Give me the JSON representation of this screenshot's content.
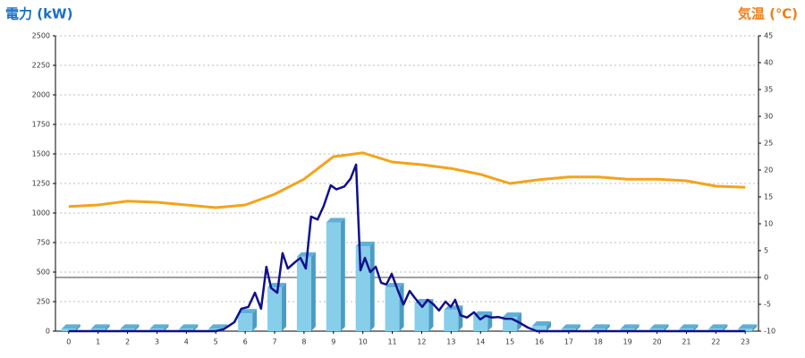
{
  "chart_data": {
    "type": "bar",
    "title_left": "電力 (kW)",
    "title_right": "気温 (℃)",
    "categories": [
      "0",
      "1",
      "2",
      "3",
      "4",
      "5",
      "6",
      "7",
      "8",
      "9",
      "10",
      "11",
      "12",
      "13",
      "14",
      "15",
      "16",
      "17",
      "18",
      "19",
      "20",
      "21",
      "22",
      "23"
    ],
    "xlim": [
      -0.45,
      23.45
    ],
    "ylim": [
      0,
      2500
    ],
    "yticks": [
      0,
      250,
      500,
      750,
      1000,
      1250,
      1500,
      1750,
      2000,
      2250,
      2500
    ],
    "y2lim": [
      -10,
      45
    ],
    "y2ticks": [
      -10,
      -5,
      0,
      5,
      10,
      15,
      20,
      25,
      30,
      35,
      40,
      45
    ],
    "grid": true,
    "series": [
      {
        "type": "bar",
        "color": "#87ceeb",
        "values": [
          20,
          20,
          20,
          20,
          20,
          20,
          150,
          370,
          630,
          920,
          720,
          370,
          235,
          180,
          130,
          120,
          45,
          20,
          20,
          20,
          20,
          20,
          20,
          20
        ]
      },
      {
        "type": "line",
        "color": "#10108c",
        "x": [
          0,
          5.0,
          5.26,
          5.63,
          5.87,
          6.11,
          6.33,
          6.54,
          6.72,
          6.88,
          7.09,
          7.27,
          7.45,
          7.7,
          7.88,
          8.06,
          8.24,
          8.46,
          8.67,
          8.91,
          9.1,
          9.37,
          9.58,
          9.77,
          9.92,
          10.07,
          10.25,
          10.44,
          10.62,
          10.8,
          10.98,
          11.2,
          11.38,
          11.59,
          11.77,
          12.02,
          12.2,
          12.41,
          12.59,
          12.81,
          12.99,
          13.14,
          13.32,
          13.54,
          13.78,
          13.99,
          14.18,
          14.39,
          14.6,
          14.85,
          15.06,
          15.3,
          15.61,
          15.91,
          23
        ],
        "values": [
          0,
          0,
          15,
          76,
          190,
          205,
          325,
          190,
          545,
          365,
          325,
          660,
          530,
          585,
          620,
          530,
          970,
          945,
          1060,
          1235,
          1200,
          1225,
          1290,
          1410,
          515,
          620,
          500,
          545,
          410,
          395,
          485,
          340,
          225,
          340,
          280,
          205,
          265,
          225,
          175,
          250,
          205,
          265,
          135,
          115,
          160,
          100,
          130,
          115,
          120,
          105,
          105,
          75,
          30,
          0,
          0
        ]
      },
      {
        "type": "line",
        "axis": "y2",
        "color": "#f5a31a",
        "values": [
          13.2,
          13.5,
          14.2,
          14,
          13.5,
          13,
          13.5,
          15.5,
          18.3,
          22.5,
          23.2,
          21.5,
          21,
          20.3,
          19.2,
          17.5,
          18.2,
          18.7,
          18.7,
          18.3,
          18.3,
          18,
          17,
          16.8
        ]
      }
    ]
  }
}
